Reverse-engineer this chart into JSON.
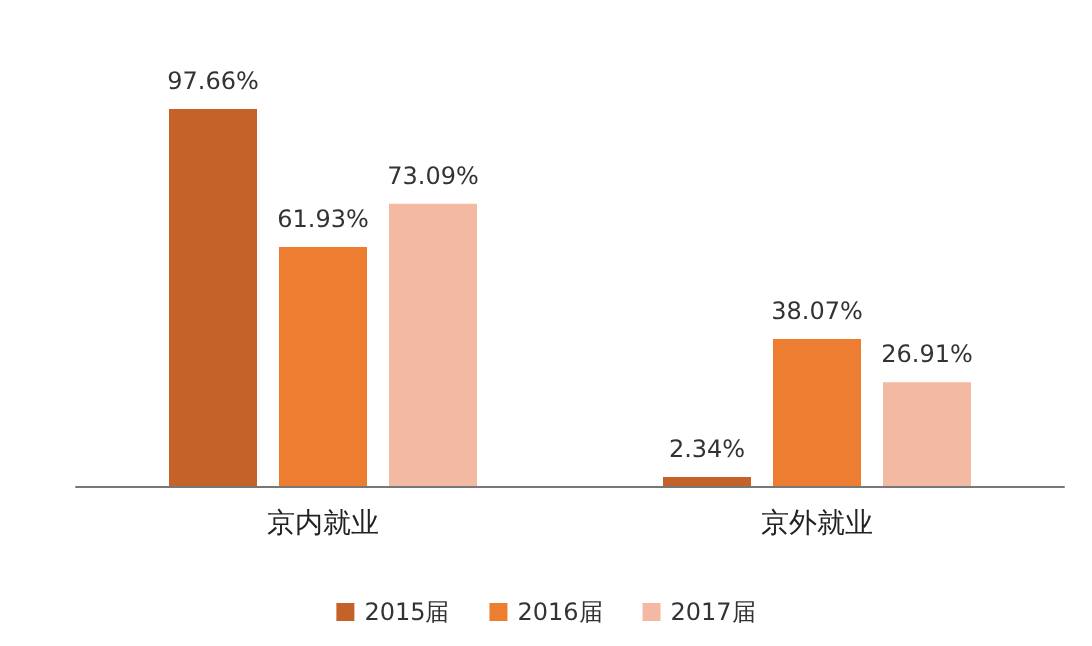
{
  "chart_data": {
    "type": "bar",
    "categories": [
      "京内就业",
      "京外就业"
    ],
    "series": [
      {
        "name": "2015届",
        "color": "#c4622a",
        "values": [
          97.66,
          2.34
        ],
        "value_labels": [
          "97.66%",
          "2.34%"
        ]
      },
      {
        "name": "2016届",
        "color": "#ed7d31",
        "values": [
          61.93,
          38.07
        ],
        "value_labels": [
          "61.93%",
          "38.07%"
        ]
      },
      {
        "name": "2017届",
        "color": "#f4b9a2",
        "values": [
          73.09,
          26.91
        ],
        "value_labels": [
          "73.09%",
          "26.91%"
        ]
      }
    ],
    "legend": "bottom"
  }
}
